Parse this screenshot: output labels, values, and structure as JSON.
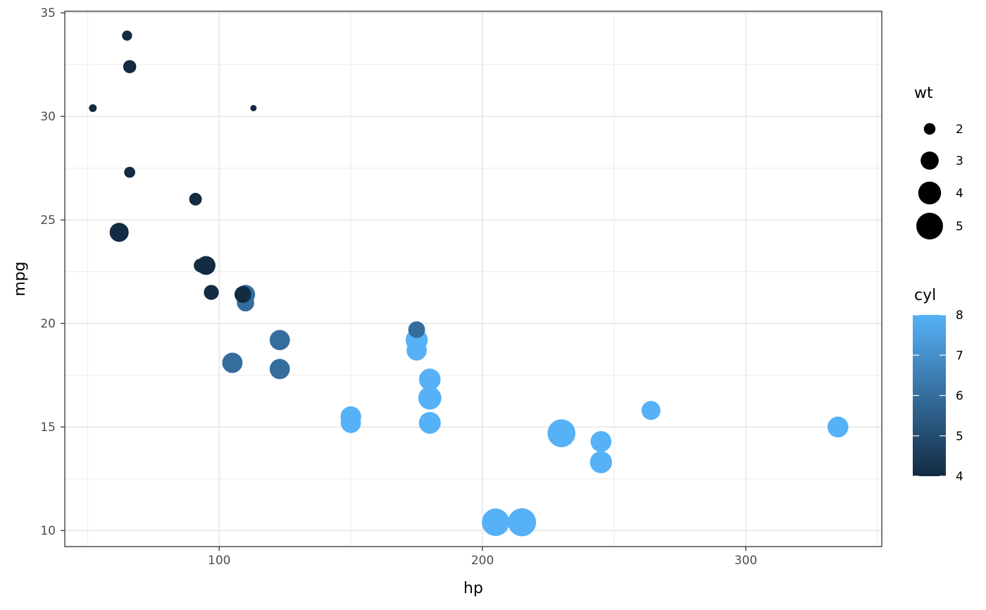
{
  "chart_data": {
    "type": "scatter",
    "xlabel": "hp",
    "ylabel": "mpg",
    "xlim": [
      41.35,
      351.65
    ],
    "ylim": [
      9.225,
      35.075
    ],
    "x_ticks": [
      100,
      200,
      300
    ],
    "y_ticks": [
      10,
      15,
      20,
      25,
      30,
      35
    ],
    "x_minor_ticks": [
      50,
      150,
      250,
      350
    ],
    "y_minor_ticks": [
      12.5,
      17.5,
      22.5,
      27.5,
      32.5
    ],
    "grid": true,
    "legends": [
      {
        "title": "wt",
        "type": "size",
        "entries": [
          {
            "label": "2",
            "value": 2
          },
          {
            "label": "3",
            "value": 3
          },
          {
            "label": "4",
            "value": 4
          },
          {
            "label": "5",
            "value": 5
          }
        ],
        "range": [
          1.513,
          5.424
        ]
      },
      {
        "title": "cyl",
        "type": "colorbar",
        "entries": [
          {
            "label": "4",
            "value": 4
          },
          {
            "label": "5",
            "value": 5
          },
          {
            "label": "6",
            "value": 6
          },
          {
            "label": "7",
            "value": 7
          },
          {
            "label": "8",
            "value": 8
          }
        ],
        "low_color": "#132B43",
        "high_color": "#56B1F7"
      }
    ],
    "points": [
      {
        "hp": 110,
        "mpg": 21.0,
        "wt": 2.62,
        "cyl": 6
      },
      {
        "hp": 110,
        "mpg": 21.0,
        "wt": 2.875,
        "cyl": 6
      },
      {
        "hp": 93,
        "mpg": 22.8,
        "wt": 2.32,
        "cyl": 4
      },
      {
        "hp": 110,
        "mpg": 21.4,
        "wt": 3.215,
        "cyl": 6
      },
      {
        "hp": 175,
        "mpg": 18.7,
        "wt": 3.44,
        "cyl": 8
      },
      {
        "hp": 105,
        "mpg": 18.1,
        "wt": 3.46,
        "cyl": 6
      },
      {
        "hp": 245,
        "mpg": 14.3,
        "wt": 3.57,
        "cyl": 8
      },
      {
        "hp": 62,
        "mpg": 24.4,
        "wt": 3.19,
        "cyl": 4
      },
      {
        "hp": 95,
        "mpg": 22.8,
        "wt": 3.15,
        "cyl": 4
      },
      {
        "hp": 123,
        "mpg": 19.2,
        "wt": 3.44,
        "cyl": 6
      },
      {
        "hp": 123,
        "mpg": 17.8,
        "wt": 3.44,
        "cyl": 6
      },
      {
        "hp": 180,
        "mpg": 16.4,
        "wt": 4.07,
        "cyl": 8
      },
      {
        "hp": 180,
        "mpg": 17.3,
        "wt": 3.73,
        "cyl": 8
      },
      {
        "hp": 180,
        "mpg": 15.2,
        "wt": 3.78,
        "cyl": 8
      },
      {
        "hp": 205,
        "mpg": 10.4,
        "wt": 5.25,
        "cyl": 8
      },
      {
        "hp": 215,
        "mpg": 10.4,
        "wt": 5.424,
        "cyl": 8
      },
      {
        "hp": 230,
        "mpg": 14.7,
        "wt": 5.345,
        "cyl": 8
      },
      {
        "hp": 66,
        "mpg": 32.4,
        "wt": 2.2,
        "cyl": 4
      },
      {
        "hp": 52,
        "mpg": 30.4,
        "wt": 1.615,
        "cyl": 4
      },
      {
        "hp": 65,
        "mpg": 33.9,
        "wt": 1.835,
        "cyl": 4
      },
      {
        "hp": 97,
        "mpg": 21.5,
        "wt": 2.465,
        "cyl": 4
      },
      {
        "hp": 150,
        "mpg": 15.5,
        "wt": 3.52,
        "cyl": 8
      },
      {
        "hp": 150,
        "mpg": 15.2,
        "wt": 3.435,
        "cyl": 8
      },
      {
        "hp": 245,
        "mpg": 13.3,
        "wt": 3.84,
        "cyl": 8
      },
      {
        "hp": 175,
        "mpg": 19.2,
        "wt": 3.845,
        "cyl": 8
      },
      {
        "hp": 66,
        "mpg": 27.3,
        "wt": 1.935,
        "cyl": 4
      },
      {
        "hp": 91,
        "mpg": 26.0,
        "wt": 2.14,
        "cyl": 4
      },
      {
        "hp": 113,
        "mpg": 30.4,
        "wt": 1.513,
        "cyl": 4
      },
      {
        "hp": 264,
        "mpg": 15.8,
        "wt": 3.17,
        "cyl": 8
      },
      {
        "hp": 175,
        "mpg": 19.7,
        "wt": 2.77,
        "cyl": 6
      },
      {
        "hp": 335,
        "mpg": 15.0,
        "wt": 3.57,
        "cyl": 8
      },
      {
        "hp": 109,
        "mpg": 21.4,
        "wt": 2.78,
        "cyl": 4
      }
    ]
  }
}
